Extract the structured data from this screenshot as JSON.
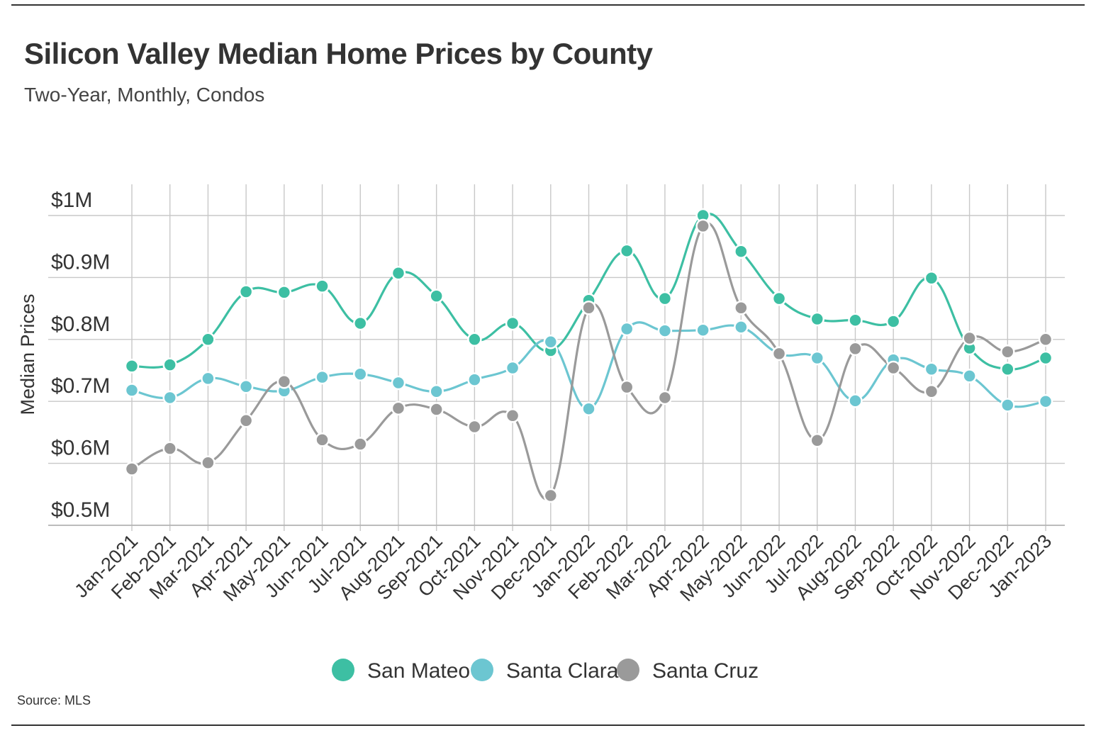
{
  "header": {
    "title": "Silicon Valley Median Home Prices by County",
    "subtitle": "Two-Year, Monthly, Condos"
  },
  "footer": {
    "source": "Source:  MLS"
  },
  "chart_data": {
    "type": "line",
    "title": "Silicon Valley Median Home Prices by County",
    "subtitle": "Two-Year, Monthly, Condos",
    "xlabel": "",
    "ylabel": "Median Prices",
    "ylim": [
      0.5,
      1.0
    ],
    "yticks": [
      0.5,
      0.6,
      0.7,
      0.8,
      0.9,
      1.0
    ],
    "ytick_labels": [
      "$0.5M",
      "$0.6M",
      "$0.7M",
      "$0.8M",
      "$0.9M",
      "$1M"
    ],
    "grid": true,
    "legend": "bottom-center",
    "categories": [
      "Jan-2021",
      "Feb-2021",
      "Mar-2021",
      "Apr-2021",
      "May-2021",
      "Jun-2021",
      "Jul-2021",
      "Aug-2021",
      "Sep-2021",
      "Oct-2021",
      "Nov-2021",
      "Dec-2021",
      "Jan-2022",
      "Feb-2022",
      "Mar-2022",
      "Apr-2022",
      "May-2022",
      "Jun-2022",
      "Jul-2022",
      "Aug-2022",
      "Sep-2022",
      "Oct-2022",
      "Nov-2022",
      "Dec-2022",
      "Jan-2023"
    ],
    "series": [
      {
        "name": "San Mateo",
        "color": "#3dbfa3",
        "values": [
          0.757,
          0.759,
          0.8,
          0.877,
          0.876,
          0.886,
          0.826,
          0.907,
          0.87,
          0.8,
          0.826,
          0.782,
          0.863,
          0.943,
          0.866,
          1.0,
          0.942,
          0.866,
          0.833,
          0.831,
          0.829,
          0.899,
          0.786,
          0.752,
          0.77
        ]
      },
      {
        "name": "Santa Clara",
        "color": "#6cc6d1",
        "values": [
          0.718,
          0.706,
          0.737,
          0.724,
          0.717,
          0.739,
          0.744,
          0.73,
          0.716,
          0.735,
          0.754,
          0.796,
          0.688,
          0.817,
          0.814,
          0.815,
          0.82,
          0.777,
          0.77,
          0.701,
          0.767,
          0.752,
          0.741,
          0.694,
          0.7
        ]
      },
      {
        "name": "Santa Cruz",
        "color": "#9a9a9a",
        "values": [
          0.591,
          0.624,
          0.601,
          0.669,
          0.732,
          0.638,
          0.631,
          0.689,
          0.687,
          0.659,
          0.677,
          0.548,
          0.851,
          0.723,
          0.706,
          0.983,
          0.851,
          0.777,
          0.637,
          0.785,
          0.754,
          0.716,
          0.802,
          0.78,
          0.8
        ]
      }
    ]
  }
}
